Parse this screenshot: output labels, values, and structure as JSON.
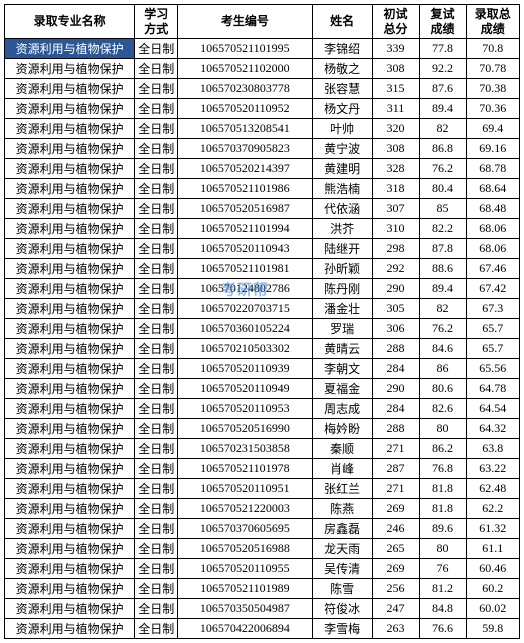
{
  "columns": [
    {
      "label": "录取专业名称",
      "class": "col-major"
    },
    {
      "label": "学习\n方式",
      "class": "col-mode"
    },
    {
      "label": "考生编号",
      "class": "col-examid"
    },
    {
      "label": "姓名",
      "class": "col-name"
    },
    {
      "label": "初试\n总分",
      "class": "col-score1"
    },
    {
      "label": "复试\n成绩",
      "class": "col-score2"
    },
    {
      "label": "录取总\n成绩",
      "class": "col-score3"
    }
  ],
  "rows": [
    {
      "major": "资源利用与植物保护",
      "mode": "全日制",
      "examid": "106570521101995",
      "name": "李锦绍",
      "s1": "339",
      "s2": "77.8",
      "s3": "70.8",
      "highlight": true
    },
    {
      "major": "资源利用与植物保护",
      "mode": "全日制",
      "examid": "106570521102000",
      "name": "杨敬之",
      "s1": "308",
      "s2": "92.2",
      "s3": "70.78"
    },
    {
      "major": "资源利用与植物保护",
      "mode": "全日制",
      "examid": "106570230803778",
      "name": "张容慧",
      "s1": "315",
      "s2": "87.6",
      "s3": "70.38"
    },
    {
      "major": "资源利用与植物保护",
      "mode": "全日制",
      "examid": "106570520110952",
      "name": "杨文丹",
      "s1": "311",
      "s2": "89.4",
      "s3": "70.36"
    },
    {
      "major": "资源利用与植物保护",
      "mode": "全日制",
      "examid": "106570513208541",
      "name": "叶帅",
      "s1": "320",
      "s2": "82",
      "s3": "69.4"
    },
    {
      "major": "资源利用与植物保护",
      "mode": "全日制",
      "examid": "106570370905823",
      "name": "黄宁波",
      "s1": "308",
      "s2": "86.8",
      "s3": "69.16"
    },
    {
      "major": "资源利用与植物保护",
      "mode": "全日制",
      "examid": "106570520214397",
      "name": "黄建明",
      "s1": "328",
      "s2": "76.2",
      "s3": "68.78"
    },
    {
      "major": "资源利用与植物保护",
      "mode": "全日制",
      "examid": "106570521101986",
      "name": "熊浩楠",
      "s1": "318",
      "s2": "80.4",
      "s3": "68.64"
    },
    {
      "major": "资源利用与植物保护",
      "mode": "全日制",
      "examid": "106570520516987",
      "name": "代依涵",
      "s1": "307",
      "s2": "85",
      "s3": "68.48"
    },
    {
      "major": "资源利用与植物保护",
      "mode": "全日制",
      "examid": "106570521101994",
      "name": "洪芥",
      "s1": "310",
      "s2": "82.2",
      "s3": "68.06"
    },
    {
      "major": "资源利用与植物保护",
      "mode": "全日制",
      "examid": "106570520110943",
      "name": "陆继开",
      "s1": "298",
      "s2": "87.8",
      "s3": "68.06"
    },
    {
      "major": "资源利用与植物保护",
      "mode": "全日制",
      "examid": "106570521101981",
      "name": "孙昕颖",
      "s1": "292",
      "s2": "88.6",
      "s3": "67.46"
    },
    {
      "major": "资源利用与植物保护",
      "mode": "全日制",
      "examid": "106570124802786",
      "name": "陈丹刚",
      "s1": "290",
      "s2": "89.4",
      "s3": "67.42",
      "watermark": true
    },
    {
      "major": "资源利用与植物保护",
      "mode": "全日制",
      "examid": "106570220703715",
      "name": "潘金壮",
      "s1": "305",
      "s2": "82",
      "s3": "67.3"
    },
    {
      "major": "资源利用与植物保护",
      "mode": "全日制",
      "examid": "106570360105224",
      "name": "罗瑞",
      "s1": "306",
      "s2": "76.2",
      "s3": "65.7"
    },
    {
      "major": "资源利用与植物保护",
      "mode": "全日制",
      "examid": "106570210503302",
      "name": "黄晴云",
      "s1": "288",
      "s2": "84.6",
      "s3": "65.7"
    },
    {
      "major": "资源利用与植物保护",
      "mode": "全日制",
      "examid": "106570520110939",
      "name": "李朝文",
      "s1": "284",
      "s2": "86",
      "s3": "65.56"
    },
    {
      "major": "资源利用与植物保护",
      "mode": "全日制",
      "examid": "106570520110949",
      "name": "夏福金",
      "s1": "290",
      "s2": "80.6",
      "s3": "64.78"
    },
    {
      "major": "资源利用与植物保护",
      "mode": "全日制",
      "examid": "106570520110953",
      "name": "周志成",
      "s1": "284",
      "s2": "82.6",
      "s3": "64.54"
    },
    {
      "major": "资源利用与植物保护",
      "mode": "全日制",
      "examid": "106570520516990",
      "name": "梅妗盼",
      "s1": "288",
      "s2": "80",
      "s3": "64.32"
    },
    {
      "major": "资源利用与植物保护",
      "mode": "全日制",
      "examid": "106570231503858",
      "name": "秦顺",
      "s1": "271",
      "s2": "86.2",
      "s3": "63.8"
    },
    {
      "major": "资源利用与植物保护",
      "mode": "全日制",
      "examid": "106570521101978",
      "name": "肖峰",
      "s1": "287",
      "s2": "76.8",
      "s3": "63.22"
    },
    {
      "major": "资源利用与植物保护",
      "mode": "全日制",
      "examid": "106570520110951",
      "name": "张红兰",
      "s1": "271",
      "s2": "81.8",
      "s3": "62.48"
    },
    {
      "major": "资源利用与植物保护",
      "mode": "全日制",
      "examid": "106570521220003",
      "name": "陈燕",
      "s1": "269",
      "s2": "81.8",
      "s3": "62.2"
    },
    {
      "major": "资源利用与植物保护",
      "mode": "全日制",
      "examid": "106570370605695",
      "name": "房鑫磊",
      "s1": "246",
      "s2": "89.6",
      "s3": "61.32"
    },
    {
      "major": "资源利用与植物保护",
      "mode": "全日制",
      "examid": "106570520516988",
      "name": "龙天雨",
      "s1": "265",
      "s2": "80",
      "s3": "61.1"
    },
    {
      "major": "资源利用与植物保护",
      "mode": "全日制",
      "examid": "106570520110955",
      "name": "吴传清",
      "s1": "269",
      "s2": "76",
      "s3": "60.46"
    },
    {
      "major": "资源利用与植物保护",
      "mode": "全日制",
      "examid": "106570521101989",
      "name": "陈雪",
      "s1": "256",
      "s2": "81.2",
      "s3": "60.2"
    },
    {
      "major": "资源利用与植物保护",
      "mode": "全日制",
      "examid": "106570350504987",
      "name": "符俊冰",
      "s1": "247",
      "s2": "84.8",
      "s3": "60.02"
    },
    {
      "major": "资源利用与植物保护",
      "mode": "全日制",
      "examid": "106570422006894",
      "name": "李雪梅",
      "s1": "263",
      "s2": "76.6",
      "s3": "59.8"
    }
  ],
  "watermark_text": "考研帮"
}
